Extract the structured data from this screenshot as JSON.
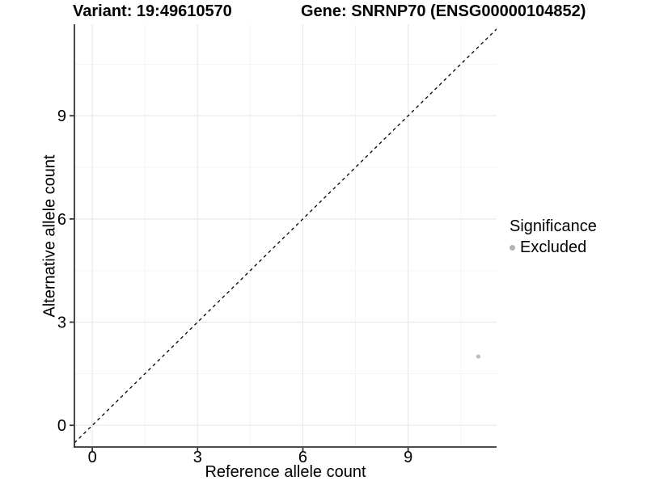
{
  "chart_data": {
    "type": "scatter",
    "title_left": "Variant: 19:49610570",
    "title_right": "Gene: SNRNP70 (ENSG00000104852)",
    "xlabel": "Reference allele count",
    "ylabel": "Alternative allele count",
    "x_ticks": [
      0,
      3,
      6,
      9
    ],
    "y_ticks": [
      0,
      3,
      6,
      9
    ],
    "x_minor_ticks": [
      1.5,
      4.5,
      7.5,
      10.5
    ],
    "y_minor_ticks": [
      1.5,
      4.5,
      7.5,
      10.5
    ],
    "xlim": [
      -0.51,
      11.52
    ],
    "ylim": [
      -0.63,
      11.66
    ],
    "grid": true,
    "identity_line": {
      "slope": 1,
      "intercept": 0,
      "style": "dashed",
      "color": "#000000"
    },
    "points": [
      {
        "x": 11,
        "y": 2,
        "significance": "Excluded",
        "color": "#bdbdbd"
      }
    ],
    "legend": {
      "title": "Significance",
      "position": "right",
      "items": [
        {
          "label": "Excluded",
          "color": "#b3b3b3",
          "marker": "circle"
        }
      ]
    },
    "colors": {
      "background": "#ffffff",
      "axis_line": "#333333",
      "tick_mark": "#333333",
      "tick_label": "#000000",
      "grid_major": "#e9e9e9",
      "grid_minor": "#f3f3f3",
      "point": "#bdbdbd",
      "identity_line": "#000000"
    }
  }
}
